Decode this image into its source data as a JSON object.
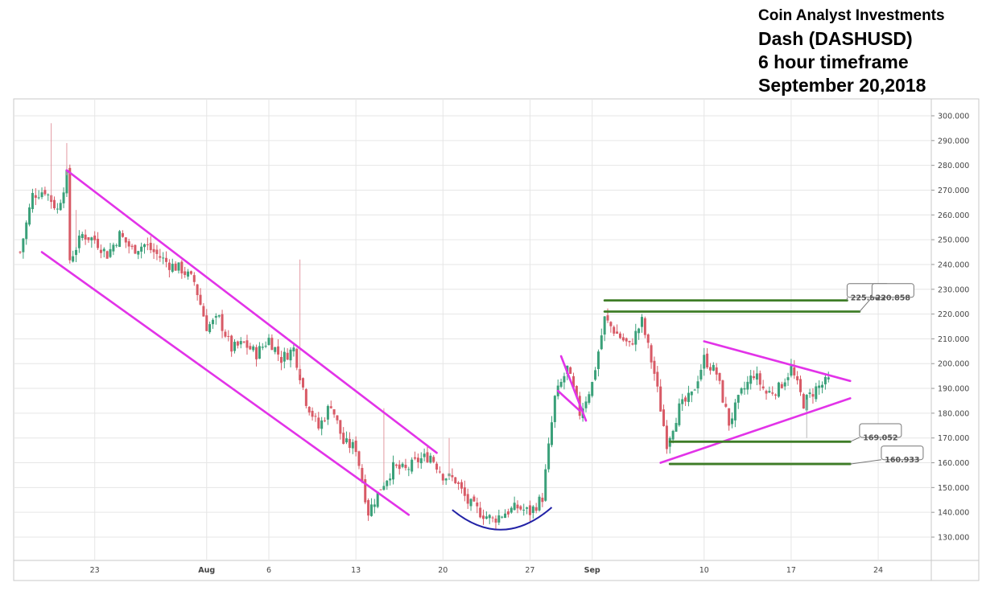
{
  "header": {
    "line1": "Coin Analyst Investments",
    "line2": "Dash (DASHUSD)",
    "line3": "6 hour timeframe",
    "line4": "September 20,2018"
  },
  "colors": {
    "up": "#3aa079",
    "down": "#d85a66",
    "channel": "#e233e8",
    "level": "#3e7d27",
    "arc": "#2222a6",
    "grid": "#e6e6e6",
    "frame": "#c9c9c9"
  },
  "chart_data": {
    "type": "candlestick",
    "title": "Dash (DASHUSD)",
    "y_ticks": [
      "300.000",
      "290.000",
      "280.000",
      "270.000",
      "260.000",
      "250.000",
      "240.000",
      "230.000",
      "220.000",
      "210.000",
      "200.000",
      "190.000",
      "180.000",
      "170.000",
      "160.000",
      "150.000",
      "140.000",
      "130.000"
    ],
    "ylim": [
      121,
      305
    ],
    "x_range": [
      "2018-07-17",
      "2018-09-25"
    ],
    "x_ticks": [
      {
        "date": "2018-07-23",
        "label": "23",
        "bold": false
      },
      {
        "date": "2018-08-01",
        "label": "Aug",
        "bold": true
      },
      {
        "date": "2018-08-06",
        "label": "6",
        "bold": false
      },
      {
        "date": "2018-08-13",
        "label": "13",
        "bold": false
      },
      {
        "date": "2018-08-20",
        "label": "20",
        "bold": false
      },
      {
        "date": "2018-08-27",
        "label": "27",
        "bold": false
      },
      {
        "date": "2018-09-01",
        "label": "Sep",
        "bold": true
      },
      {
        "date": "2018-09-10",
        "label": "10",
        "bold": false
      },
      {
        "date": "2018-09-17",
        "label": "17",
        "bold": false
      },
      {
        "date": "2018-09-24",
        "label": "24",
        "bold": false
      }
    ],
    "price_path": [
      [
        "2018-07-17",
        245
      ],
      [
        "2018-07-18",
        268
      ],
      [
        "2018-07-19",
        270
      ],
      [
        "2018-07-20",
        262
      ],
      [
        "2018-07-20T18:00",
        276
      ],
      [
        "2018-07-21",
        242
      ],
      [
        "2018-07-22",
        252
      ],
      [
        "2018-07-23",
        250
      ],
      [
        "2018-07-24",
        244
      ],
      [
        "2018-07-25",
        252
      ],
      [
        "2018-07-26",
        246
      ],
      [
        "2018-07-27",
        248
      ],
      [
        "2018-07-28",
        244
      ],
      [
        "2018-07-29",
        240
      ],
      [
        "2018-07-30",
        238
      ],
      [
        "2018-07-31",
        233
      ],
      [
        "2018-08-01",
        215
      ],
      [
        "2018-08-02",
        218
      ],
      [
        "2018-08-03",
        206
      ],
      [
        "2018-08-04",
        208
      ],
      [
        "2018-08-05",
        204
      ],
      [
        "2018-08-06",
        210
      ],
      [
        "2018-08-07",
        202
      ],
      [
        "2018-08-08",
        206
      ],
      [
        "2018-08-09",
        185
      ],
      [
        "2018-08-10",
        174
      ],
      [
        "2018-08-11",
        184
      ],
      [
        "2018-08-12",
        168
      ],
      [
        "2018-08-13",
        166
      ],
      [
        "2018-08-14",
        140
      ],
      [
        "2018-08-15",
        150
      ],
      [
        "2018-08-16",
        158
      ],
      [
        "2018-08-17",
        157
      ],
      [
        "2018-08-18",
        161
      ],
      [
        "2018-08-19",
        163
      ],
      [
        "2018-08-20",
        155
      ],
      [
        "2018-08-21",
        153
      ],
      [
        "2018-08-22",
        144
      ],
      [
        "2018-08-23",
        140
      ],
      [
        "2018-08-24",
        137
      ],
      [
        "2018-08-25",
        140
      ],
      [
        "2018-08-26",
        142
      ],
      [
        "2018-08-27",
        140
      ],
      [
        "2018-08-28",
        146
      ],
      [
        "2018-08-29",
        186
      ],
      [
        "2018-08-30",
        198
      ],
      [
        "2018-08-31",
        180
      ],
      [
        "2018-09-01",
        192
      ],
      [
        "2018-09-02",
        218
      ],
      [
        "2018-09-03",
        212
      ],
      [
        "2018-09-04",
        207
      ],
      [
        "2018-09-05",
        217
      ],
      [
        "2018-09-06",
        196
      ],
      [
        "2018-09-07",
        168
      ],
      [
        "2018-09-08",
        182
      ],
      [
        "2018-09-09",
        187
      ],
      [
        "2018-09-10",
        202
      ],
      [
        "2018-09-11",
        196
      ],
      [
        "2018-09-12",
        176
      ],
      [
        "2018-09-13",
        188
      ],
      [
        "2018-09-14",
        196
      ],
      [
        "2018-09-15",
        188
      ],
      [
        "2018-09-16",
        190
      ],
      [
        "2018-09-17",
        198
      ],
      [
        "2018-09-18",
        184
      ],
      [
        "2018-09-19",
        190
      ],
      [
        "2018-09-20",
        193
      ]
    ],
    "wick_spikes": [
      {
        "date": "2018-07-19T12:00",
        "high": 297
      },
      {
        "date": "2018-07-20T18:00",
        "high": 289
      },
      {
        "date": "2018-07-21T12:00",
        "high": 262
      },
      {
        "date": "2018-08-08T12:00",
        "high": 242
      },
      {
        "date": "2018-08-15T06:00",
        "high": 182
      },
      {
        "date": "2018-08-20T12:00",
        "high": 170
      },
      {
        "date": "2018-09-18T06:00",
        "high": 170,
        "low_spike": true
      }
    ],
    "lines": [
      {
        "kind": "channel",
        "from": [
          "2018-07-20T18:00",
          278
        ],
        "to": [
          "2018-08-19T12:00",
          164
        ]
      },
      {
        "kind": "channel",
        "from": [
          "2018-07-18T18:00",
          245
        ],
        "to": [
          "2018-08-17T06:00",
          139
        ]
      },
      {
        "kind": "channel",
        "from": [
          "2018-08-29T12:00",
          203
        ],
        "to": [
          "2018-08-31T12:00",
          177
        ]
      },
      {
        "kind": "channel",
        "from": [
          "2018-08-29T06:00",
          189
        ],
        "to": [
          "2018-08-31T00:00",
          181
        ]
      },
      {
        "kind": "channel",
        "from": [
          "2018-09-10T00:00",
          209
        ],
        "to": [
          "2018-09-21T18:00",
          193
        ]
      },
      {
        "kind": "channel",
        "from": [
          "2018-09-06T12:00",
          160
        ],
        "to": [
          "2018-09-21T18:00",
          186
        ]
      },
      {
        "kind": "level",
        "from": [
          "2018-09-02T00:00",
          225.5
        ],
        "to": [
          "2018-09-21T12:00",
          225.5
        ]
      },
      {
        "kind": "level",
        "from": [
          "2018-09-02T00:00",
          221
        ],
        "to": [
          "2018-09-22T12:00",
          221
        ]
      },
      {
        "kind": "level",
        "from": [
          "2018-09-07T06:00",
          168.5
        ],
        "to": [
          "2018-09-21T18:00",
          168.5
        ]
      },
      {
        "kind": "level",
        "from": [
          "2018-09-07T06:00",
          159.5
        ],
        "to": [
          "2018-09-21T18:00",
          159.5
        ]
      }
    ],
    "rounded_bottom": {
      "from": [
        "2018-08-20T18:00",
        141
      ],
      "to": [
        "2018-08-28T18:00",
        142
      ],
      "bottom": 133
    },
    "annotations": [
      {
        "label": "225.883",
        "anchor": [
          "2018-09-21T12:00",
          225.5
        ],
        "box": [
          "2018-09-21T12:00",
          229.5
        ]
      },
      {
        "label": "220.858",
        "anchor": [
          "2018-09-22T12:00",
          221
        ],
        "box": [
          "2018-09-23T12:00",
          229.5
        ]
      },
      {
        "label": "169.052",
        "anchor": [
          "2018-09-21T18:00",
          168.5
        ],
        "box": [
          "2018-09-22T12:00",
          173
        ]
      },
      {
        "label": "160.933",
        "anchor": [
          "2018-09-21T18:00",
          159.5
        ],
        "box": [
          "2018-09-24T06:00",
          164
        ]
      }
    ]
  }
}
